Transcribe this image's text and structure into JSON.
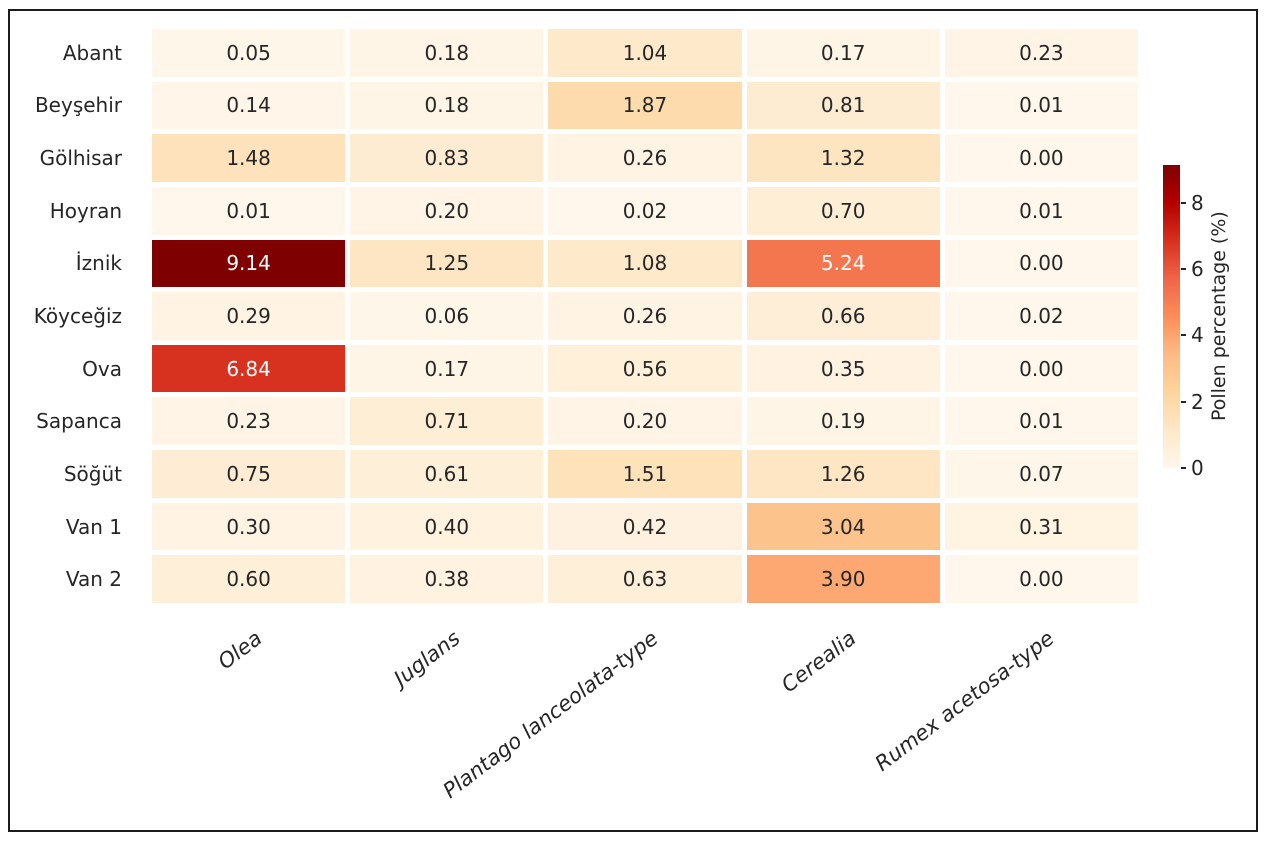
{
  "figure": {
    "background_color": "#ffffff",
    "frame_border_color": "#1b1b1b",
    "text_color": "#262626"
  },
  "chart_data": {
    "type": "heatmap",
    "title": "",
    "rows": [
      "Abant",
      "Beyşehir",
      "Gölhisar",
      "Hoyran",
      "İznik",
      "Köyceğiz",
      "Ova",
      "Sapanca",
      "Söğüt",
      "Van 1",
      "Van 2"
    ],
    "columns": [
      "Olea",
      "Juglans",
      "Plantago lanceolata-type",
      "Cerealia",
      "Rumex acetosa-type"
    ],
    "values": [
      [
        0.05,
        0.18,
        1.04,
        0.17,
        0.23
      ],
      [
        0.14,
        0.18,
        1.87,
        0.81,
        0.01
      ],
      [
        1.48,
        0.83,
        0.26,
        1.32,
        0.0
      ],
      [
        0.01,
        0.2,
        0.02,
        0.7,
        0.01
      ],
      [
        9.14,
        1.25,
        1.08,
        5.24,
        0.0
      ],
      [
        0.29,
        0.06,
        0.26,
        0.66,
        0.02
      ],
      [
        6.84,
        0.17,
        0.56,
        0.35,
        0.0
      ],
      [
        0.23,
        0.71,
        0.2,
        0.19,
        0.01
      ],
      [
        0.75,
        0.61,
        1.51,
        1.26,
        0.07
      ],
      [
        0.3,
        0.4,
        0.42,
        3.04,
        0.31
      ],
      [
        0.6,
        0.38,
        0.63,
        3.9,
        0.0
      ]
    ],
    "cell_value_decimals": 2,
    "colormap": {
      "name": "OrRd",
      "stops": [
        "#fff7ec",
        "#fee8c8",
        "#fdd49e",
        "#fdbb84",
        "#fc8d59",
        "#ef6548",
        "#d7301f",
        "#b30000",
        "#7f0000"
      ],
      "vmin": 0,
      "vmax": 9.14
    },
    "annotation_text_colors": {
      "dark": "#262626",
      "light": "#ffffff"
    },
    "colorbar": {
      "label": "Pollen percentage (%)",
      "ticks": [
        0,
        2,
        4,
        6,
        8
      ],
      "position": "right"
    },
    "grid": "off",
    "legend_position": "right-colorbar"
  }
}
